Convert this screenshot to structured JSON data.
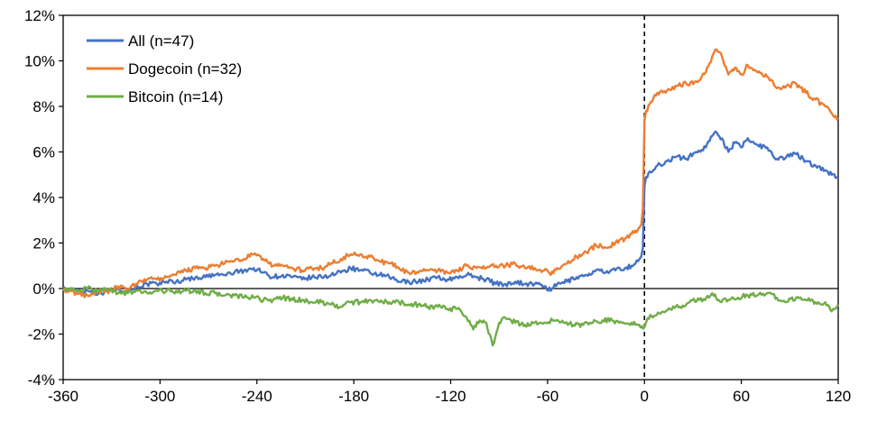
{
  "chart_data": {
    "type": "line",
    "title": "",
    "xlabel": "",
    "ylabel": "",
    "xlim": [
      -360,
      120
    ],
    "ylim": [
      -4,
      12
    ],
    "x_ticks": [
      -360,
      -300,
      -240,
      -180,
      -120,
      -60,
      0,
      60,
      120
    ],
    "x_tick_labels": [
      "-360",
      "-300",
      "-240",
      "-180",
      "-120",
      "-60",
      "0",
      "60",
      "120"
    ],
    "y_ticks": [
      -4,
      -2,
      0,
      2,
      4,
      6,
      8,
      10,
      12
    ],
    "y_tick_labels": [
      "-4%",
      "-2%",
      "0%",
      "2%",
      "4%",
      "6%",
      "8%",
      "10%",
      "12%"
    ],
    "grid": false,
    "legend_position": "top-left",
    "event_marker_x": 0,
    "series": [
      {
        "name": "All (n=47)",
        "color": "#4472c4",
        "points": [
          [
            -360,
            0.0
          ],
          [
            -352,
            -0.1
          ],
          [
            -345,
            -0.1
          ],
          [
            -338,
            -0.2
          ],
          [
            -332,
            -0.1
          ],
          [
            -326,
            0.0
          ],
          [
            -320,
            -0.1
          ],
          [
            -314,
            0.1
          ],
          [
            -308,
            0.2
          ],
          [
            -302,
            0.2
          ],
          [
            -296,
            0.3
          ],
          [
            -290,
            0.3
          ],
          [
            -284,
            0.4
          ],
          [
            -278,
            0.5
          ],
          [
            -272,
            0.5
          ],
          [
            -266,
            0.6
          ],
          [
            -260,
            0.6
          ],
          [
            -254,
            0.7
          ],
          [
            -248,
            0.8
          ],
          [
            -242,
            0.9
          ],
          [
            -236,
            0.7
          ],
          [
            -230,
            0.5
          ],
          [
            -224,
            0.6
          ],
          [
            -218,
            0.5
          ],
          [
            -212,
            0.4
          ],
          [
            -206,
            0.5
          ],
          [
            -200,
            0.5
          ],
          [
            -194,
            0.6
          ],
          [
            -188,
            0.7
          ],
          [
            -182,
            0.9
          ],
          [
            -176,
            0.8
          ],
          [
            -170,
            0.7
          ],
          [
            -164,
            0.6
          ],
          [
            -158,
            0.5
          ],
          [
            -152,
            0.3
          ],
          [
            -146,
            0.3
          ],
          [
            -140,
            0.3
          ],
          [
            -134,
            0.4
          ],
          [
            -128,
            0.5
          ],
          [
            -122,
            0.4
          ],
          [
            -116,
            0.5
          ],
          [
            -110,
            0.6
          ],
          [
            -104,
            0.5
          ],
          [
            -98,
            0.4
          ],
          [
            -92,
            0.2
          ],
          [
            -86,
            0.2
          ],
          [
            -80,
            0.3
          ],
          [
            -74,
            0.2
          ],
          [
            -68,
            0.2
          ],
          [
            -62,
            0.1
          ],
          [
            -58,
            -0.1
          ],
          [
            -54,
            0.2
          ],
          [
            -48,
            0.3
          ],
          [
            -42,
            0.5
          ],
          [
            -36,
            0.6
          ],
          [
            -30,
            0.8
          ],
          [
            -24,
            0.7
          ],
          [
            -18,
            0.8
          ],
          [
            -12,
            0.9
          ],
          [
            -8,
            1.0
          ],
          [
            -4,
            1.2
          ],
          [
            -2,
            1.4
          ],
          [
            -1,
            1.8
          ],
          [
            0,
            4.5
          ],
          [
            1,
            4.9
          ],
          [
            4,
            5.1
          ],
          [
            8,
            5.4
          ],
          [
            14,
            5.6
          ],
          [
            20,
            5.8
          ],
          [
            26,
            5.7
          ],
          [
            32,
            6.0
          ],
          [
            38,
            6.2
          ],
          [
            42,
            6.7
          ],
          [
            44,
            6.9
          ],
          [
            48,
            6.6
          ],
          [
            52,
            6.0
          ],
          [
            56,
            6.4
          ],
          [
            60,
            6.2
          ],
          [
            64,
            6.6
          ],
          [
            70,
            6.3
          ],
          [
            76,
            6.2
          ],
          [
            82,
            5.7
          ],
          [
            88,
            5.8
          ],
          [
            94,
            5.9
          ],
          [
            100,
            5.6
          ],
          [
            106,
            5.4
          ],
          [
            112,
            5.2
          ],
          [
            116,
            5.0
          ],
          [
            120,
            4.9
          ]
        ]
      },
      {
        "name": "Dogecoin (n=32)",
        "color": "#ed7d31",
        "points": [
          [
            -360,
            -0.1
          ],
          [
            -352,
            -0.2
          ],
          [
            -345,
            -0.3
          ],
          [
            -338,
            -0.1
          ],
          [
            -332,
            -0.2
          ],
          [
            -326,
            0.1
          ],
          [
            -320,
            0.0
          ],
          [
            -314,
            0.2
          ],
          [
            -308,
            0.4
          ],
          [
            -302,
            0.4
          ],
          [
            -296,
            0.5
          ],
          [
            -290,
            0.6
          ],
          [
            -284,
            0.8
          ],
          [
            -278,
            0.9
          ],
          [
            -272,
            0.9
          ],
          [
            -266,
            1.0
          ],
          [
            -260,
            1.1
          ],
          [
            -254,
            1.2
          ],
          [
            -248,
            1.3
          ],
          [
            -242,
            1.5
          ],
          [
            -236,
            1.3
          ],
          [
            -230,
            1.0
          ],
          [
            -224,
            1.0
          ],
          [
            -218,
            0.9
          ],
          [
            -212,
            0.8
          ],
          [
            -206,
            0.9
          ],
          [
            -200,
            0.9
          ],
          [
            -194,
            1.1
          ],
          [
            -188,
            1.3
          ],
          [
            -182,
            1.5
          ],
          [
            -176,
            1.5
          ],
          [
            -170,
            1.4
          ],
          [
            -164,
            1.2
          ],
          [
            -158,
            1.1
          ],
          [
            -152,
            0.9
          ],
          [
            -146,
            0.7
          ],
          [
            -140,
            0.7
          ],
          [
            -134,
            0.8
          ],
          [
            -128,
            0.8
          ],
          [
            -122,
            0.7
          ],
          [
            -116,
            0.8
          ],
          [
            -110,
            1.0
          ],
          [
            -104,
            0.9
          ],
          [
            -98,
            0.9
          ],
          [
            -92,
            1.0
          ],
          [
            -86,
            1.0
          ],
          [
            -80,
            1.1
          ],
          [
            -74,
            0.9
          ],
          [
            -68,
            0.9
          ],
          [
            -62,
            0.8
          ],
          [
            -58,
            0.6
          ],
          [
            -54,
            0.9
          ],
          [
            -48,
            1.1
          ],
          [
            -42,
            1.4
          ],
          [
            -36,
            1.6
          ],
          [
            -30,
            1.9
          ],
          [
            -24,
            1.8
          ],
          [
            -18,
            2.0
          ],
          [
            -12,
            2.2
          ],
          [
            -8,
            2.4
          ],
          [
            -4,
            2.6
          ],
          [
            -2,
            2.8
          ],
          [
            -1,
            3.5
          ],
          [
            0,
            7.4
          ],
          [
            1,
            7.8
          ],
          [
            4,
            8.2
          ],
          [
            8,
            8.6
          ],
          [
            14,
            8.7
          ],
          [
            20,
            8.9
          ],
          [
            26,
            9.0
          ],
          [
            32,
            9.1
          ],
          [
            38,
            9.5
          ],
          [
            42,
            10.2
          ],
          [
            44,
            10.5
          ],
          [
            48,
            10.2
          ],
          [
            52,
            9.4
          ],
          [
            56,
            9.7
          ],
          [
            60,
            9.4
          ],
          [
            64,
            9.8
          ],
          [
            70,
            9.5
          ],
          [
            76,
            9.3
          ],
          [
            82,
            8.8
          ],
          [
            88,
            8.9
          ],
          [
            94,
            9.0
          ],
          [
            100,
            8.6
          ],
          [
            106,
            8.3
          ],
          [
            112,
            8.0
          ],
          [
            116,
            7.7
          ],
          [
            120,
            7.5
          ]
        ]
      },
      {
        "name": "Bitcoin (n=14)",
        "color": "#70ad47",
        "points": [
          [
            -360,
            0.0
          ],
          [
            -352,
            -0.1
          ],
          [
            -345,
            0.0
          ],
          [
            -338,
            -0.1
          ],
          [
            -332,
            0.0
          ],
          [
            -326,
            -0.2
          ],
          [
            -320,
            -0.2
          ],
          [
            -314,
            -0.1
          ],
          [
            -308,
            -0.2
          ],
          [
            -302,
            -0.1
          ],
          [
            -296,
            -0.1
          ],
          [
            -290,
            -0.1
          ],
          [
            -284,
            -0.1
          ],
          [
            -278,
            -0.1
          ],
          [
            -272,
            -0.2
          ],
          [
            -266,
            -0.2
          ],
          [
            -260,
            -0.3
          ],
          [
            -254,
            -0.3
          ],
          [
            -248,
            -0.4
          ],
          [
            -242,
            -0.4
          ],
          [
            -236,
            -0.5
          ],
          [
            -230,
            -0.5
          ],
          [
            -224,
            -0.4
          ],
          [
            -218,
            -0.5
          ],
          [
            -212,
            -0.5
          ],
          [
            -206,
            -0.6
          ],
          [
            -200,
            -0.6
          ],
          [
            -194,
            -0.7
          ],
          [
            -188,
            -0.8
          ],
          [
            -182,
            -0.6
          ],
          [
            -176,
            -0.6
          ],
          [
            -170,
            -0.5
          ],
          [
            -164,
            -0.6
          ],
          [
            -158,
            -0.6
          ],
          [
            -152,
            -0.6
          ],
          [
            -146,
            -0.7
          ],
          [
            -140,
            -0.7
          ],
          [
            -134,
            -0.8
          ],
          [
            -128,
            -0.8
          ],
          [
            -122,
            -0.9
          ],
          [
            -116,
            -0.9
          ],
          [
            -110,
            -1.3
          ],
          [
            -106,
            -1.8
          ],
          [
            -102,
            -1.4
          ],
          [
            -98,
            -1.5
          ],
          [
            -94,
            -2.5
          ],
          [
            -90,
            -1.5
          ],
          [
            -86,
            -1.3
          ],
          [
            -80,
            -1.5
          ],
          [
            -74,
            -1.6
          ],
          [
            -68,
            -1.5
          ],
          [
            -62,
            -1.5
          ],
          [
            -56,
            -1.4
          ],
          [
            -50,
            -1.5
          ],
          [
            -44,
            -1.6
          ],
          [
            -38,
            -1.6
          ],
          [
            -32,
            -1.5
          ],
          [
            -26,
            -1.4
          ],
          [
            -20,
            -1.4
          ],
          [
            -14,
            -1.5
          ],
          [
            -8,
            -1.5
          ],
          [
            -4,
            -1.6
          ],
          [
            0,
            -1.7
          ],
          [
            2,
            -1.3
          ],
          [
            6,
            -1.2
          ],
          [
            10,
            -1.1
          ],
          [
            16,
            -0.9
          ],
          [
            22,
            -0.8
          ],
          [
            28,
            -0.6
          ],
          [
            34,
            -0.5
          ],
          [
            40,
            -0.4
          ],
          [
            42,
            -0.2
          ],
          [
            46,
            -0.5
          ],
          [
            52,
            -0.5
          ],
          [
            58,
            -0.4
          ],
          [
            64,
            -0.3
          ],
          [
            70,
            -0.3
          ],
          [
            76,
            -0.2
          ],
          [
            82,
            -0.4
          ],
          [
            88,
            -0.6
          ],
          [
            94,
            -0.4
          ],
          [
            100,
            -0.5
          ],
          [
            106,
            -0.6
          ],
          [
            112,
            -0.6
          ],
          [
            116,
            -1.0
          ],
          [
            120,
            -0.7
          ]
        ]
      }
    ]
  }
}
